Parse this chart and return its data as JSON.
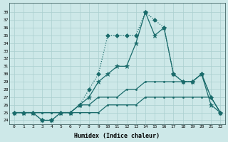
{
  "xlabel": "Humidex (Indice chaleur)",
  "background_color": "#cde8e8",
  "grid_color": "#aacfcf",
  "line_color": "#1a6b6b",
  "xlim": [
    -0.5,
    22.5
  ],
  "ylim": [
    23.5,
    39.2
  ],
  "xticks": [
    0,
    1,
    2,
    3,
    4,
    5,
    6,
    7,
    8,
    9,
    10,
    11,
    12,
    13,
    14,
    15,
    16,
    17,
    18,
    19,
    20,
    21,
    22
  ],
  "yticks": [
    24,
    25,
    26,
    27,
    28,
    29,
    30,
    31,
    32,
    33,
    34,
    35,
    36,
    37,
    38
  ],
  "series": [
    {
      "y": [
        25,
        25,
        25,
        24,
        24,
        25,
        25,
        26,
        28,
        30,
        35,
        35,
        35,
        35,
        38,
        37,
        36,
        30,
        29,
        29,
        30,
        27,
        25
      ],
      "linestyle": "dotted",
      "marker": "D",
      "markersize": 3,
      "linewidth": 0.9
    },
    {
      "y": [
        25,
        25,
        25,
        24,
        24,
        25,
        25,
        26,
        27,
        29,
        30,
        31,
        31,
        34,
        38,
        35,
        36,
        30,
        29,
        29,
        30,
        26,
        25
      ],
      "linestyle": "solid",
      "marker": "*",
      "markersize": 5,
      "linewidth": 0.9
    },
    {
      "y": [
        25,
        25,
        25,
        25,
        25,
        25,
        25,
        26,
        26,
        27,
        27,
        27,
        28,
        28,
        29,
        29,
        29,
        29,
        29,
        29,
        30,
        27,
        25
      ],
      "linestyle": "solid",
      "marker": ".",
      "markersize": 3,
      "linewidth": 0.9
    },
    {
      "y": [
        25,
        25,
        25,
        25,
        25,
        25,
        25,
        25,
        25,
        25,
        26,
        26,
        26,
        26,
        27,
        27,
        27,
        27,
        27,
        27,
        27,
        27,
        25
      ],
      "linestyle": "solid",
      "marker": ".",
      "markersize": 3,
      "linewidth": 0.9
    }
  ]
}
